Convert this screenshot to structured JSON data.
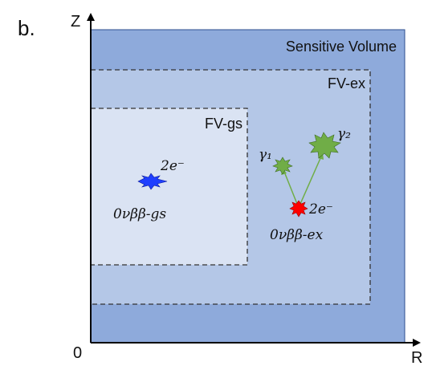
{
  "panel_label": "b.",
  "axes": {
    "z_label": "Z",
    "r_label": "R",
    "origin_label": "0"
  },
  "regions": {
    "sensitive_volume": {
      "label": "Sensitive Volume",
      "color": "#8eaadb"
    },
    "fv_ex": {
      "label": "FV-ex",
      "color": "#b4c7e7"
    },
    "fv_gs": {
      "label": "FV-gs",
      "color": "#dae3f3"
    }
  },
  "events": {
    "gs": {
      "electron_label": "2e⁻",
      "decay_label": "0νββ-gs",
      "color": "#1f3fff"
    },
    "ex": {
      "electron_label": "2e⁻",
      "decay_label": "0νββ-ex",
      "vertex_color": "#ff0000",
      "gamma_color": "#70ad47",
      "gamma1_label": "γ₁",
      "gamma2_label": "γ₂"
    }
  }
}
